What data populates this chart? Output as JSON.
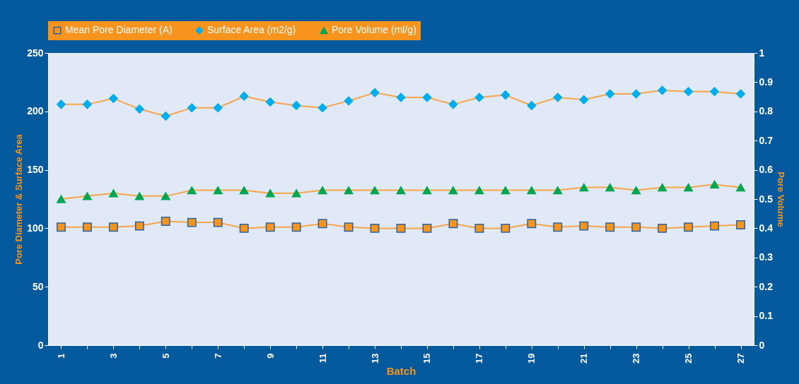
{
  "chart_data": {
    "type": "line",
    "xlabel": "Batch",
    "ylabel": "Pore Diameter & Surface Area",
    "y2label": "Pore Volume",
    "categories": [
      "1",
      null,
      "3",
      null,
      "5",
      null,
      "7",
      null,
      "9",
      null,
      "11",
      null,
      "13",
      null,
      "15",
      null,
      "17",
      null,
      "19",
      null,
      "21",
      null,
      "23",
      null,
      "25",
      null,
      "27"
    ],
    "series": [
      {
        "name": "Mean Pore Diameter (A)",
        "color": "#f7941d",
        "marker": "square",
        "values": [
          101,
          101,
          101,
          102,
          106,
          105,
          105,
          100,
          101,
          101,
          104,
          101,
          100,
          100,
          100,
          104,
          100,
          100,
          104,
          101,
          102,
          101,
          101,
          100,
          101,
          102,
          103
        ]
      },
      {
        "name": "Surface Area (m2/g)",
        "color": "#00aeef",
        "marker": "diamond",
        "values": [
          206,
          206,
          211,
          202,
          196,
          203,
          203,
          213,
          208,
          205,
          203,
          209,
          216,
          212,
          212,
          206,
          212,
          214,
          205,
          212,
          210,
          215,
          215,
          218,
          217,
          217,
          215
        ]
      },
      {
        "name": "Pore Volume (ml/g)",
        "color": "#00a651",
        "marker": "triangle",
        "axis": "y2",
        "values": [
          0.5,
          0.51,
          0.52,
          0.51,
          0.51,
          0.53,
          0.53,
          0.53,
          0.52,
          0.52,
          0.53,
          0.53,
          0.53,
          0.53,
          0.53,
          0.53,
          0.53,
          0.53,
          0.53,
          0.53,
          0.54,
          0.54,
          0.53,
          0.54,
          0.54,
          0.55,
          0.54
        ]
      }
    ],
    "ylim": [
      0,
      250
    ],
    "yticks": [
      0,
      50,
      100,
      150,
      200,
      250
    ],
    "y2lim": [
      0,
      1
    ],
    "y2ticks": [
      0,
      0.1,
      0.2,
      0.3,
      0.4,
      0.5,
      0.6,
      0.7,
      0.8,
      0.9,
      1
    ],
    "grid": false,
    "legend": "top",
    "line_style": "solid"
  }
}
